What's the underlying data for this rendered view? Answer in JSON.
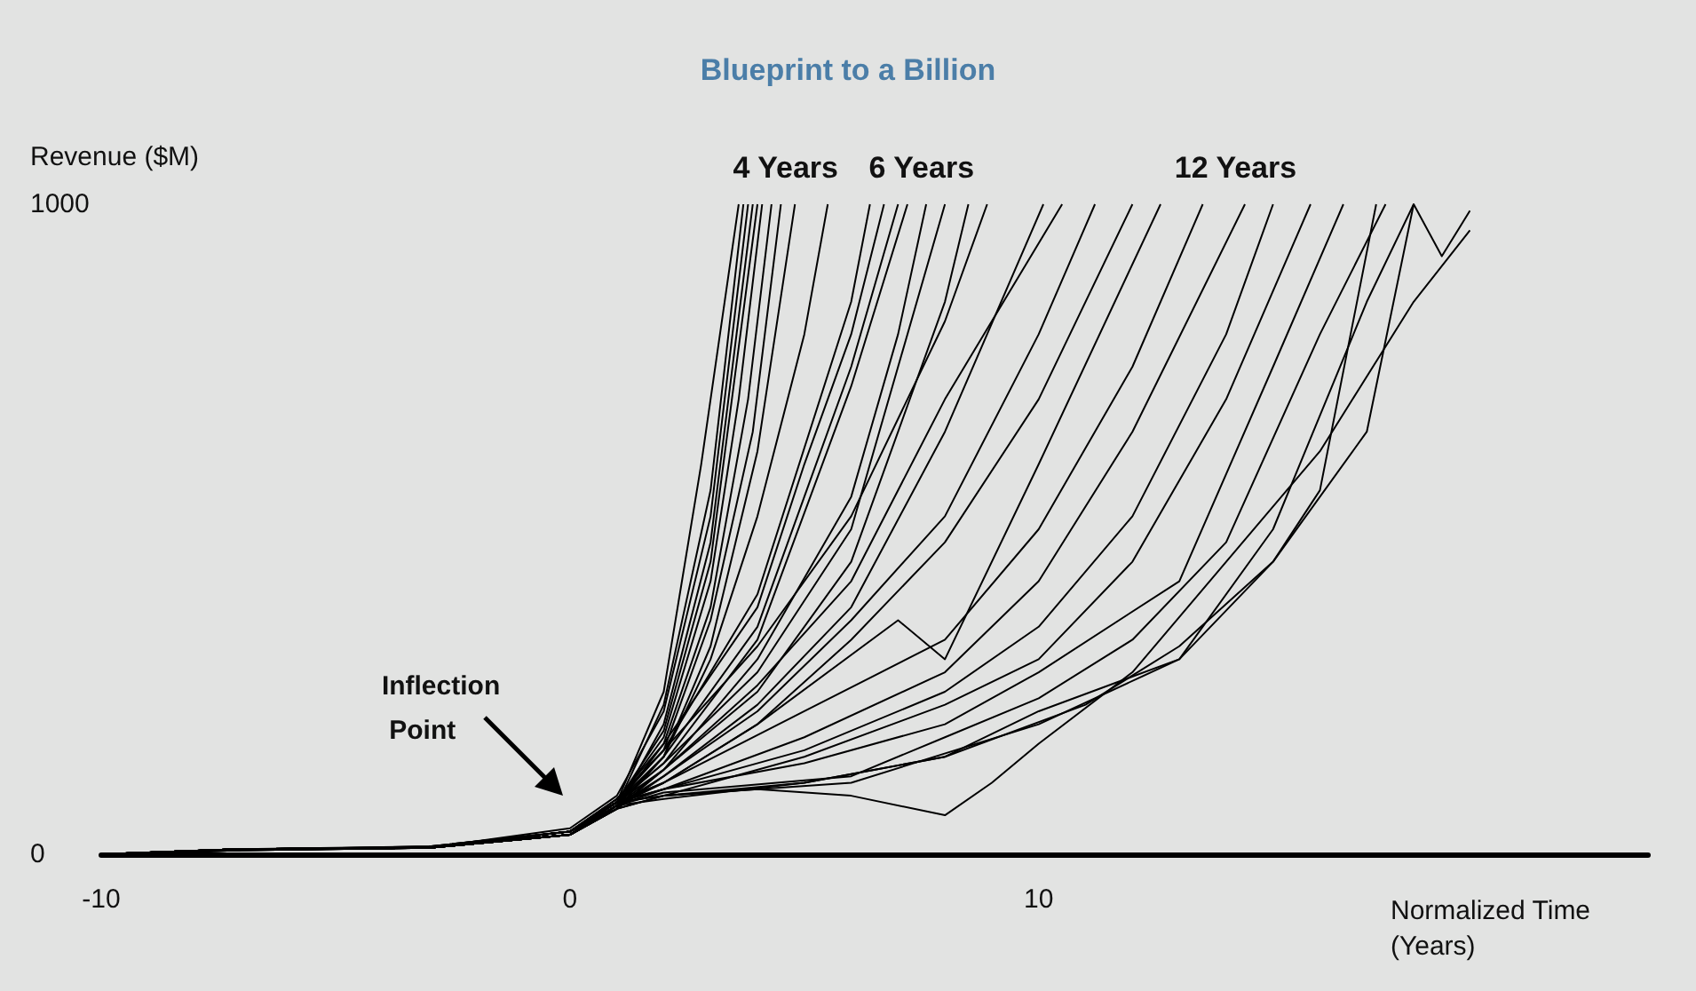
{
  "chart_data": {
    "type": "line",
    "title": "Blueprint to a Billion",
    "xlabel": "Normalized Time (Years)",
    "ylabel": "Revenue ($M)",
    "xlim": [
      -10,
      23
    ],
    "xticks": [
      -10,
      0,
      10
    ],
    "ylim": [
      0,
      1000
    ],
    "yticks": [
      0,
      1000
    ],
    "grid": false,
    "marker": "none",
    "line_style": "solid",
    "color": "#000000",
    "annotations": [
      {
        "text": "4 Years",
        "x": 4.6,
        "y": 1000
      },
      {
        "text": "6 Years",
        "x": 7.5,
        "y": 1000
      },
      {
        "text": "12 Years",
        "x": 14.2,
        "y": 1000
      },
      "Inflection Point"
    ],
    "series": [
      {
        "x": [
          -10,
          -7,
          -3,
          0,
          1,
          2,
          2.8,
          3.6
        ],
        "values": [
          0,
          8,
          10,
          35,
          80,
          250,
          600,
          1000
        ]
      },
      {
        "x": [
          -10,
          -7,
          -3,
          0,
          1,
          2,
          3,
          3.7
        ],
        "values": [
          0,
          8,
          10,
          30,
          75,
          230,
          560,
          1000
        ]
      },
      {
        "x": [
          -10,
          -7,
          -3,
          0,
          1,
          2,
          3,
          3.8
        ],
        "values": [
          0,
          6,
          10,
          40,
          90,
          220,
          520,
          1000
        ]
      },
      {
        "x": [
          -10,
          -7,
          -3,
          0,
          1,
          2,
          3,
          3.9
        ],
        "values": [
          0,
          7,
          12,
          35,
          70,
          200,
          480,
          1000
        ]
      },
      {
        "x": [
          -10,
          -7,
          -3,
          0,
          1,
          2,
          3,
          4
        ],
        "values": [
          0,
          8,
          10,
          30,
          80,
          190,
          450,
          1000
        ]
      },
      {
        "x": [
          -10,
          -7,
          -3,
          0,
          1,
          2,
          3,
          3.6,
          4.1
        ],
        "values": [
          0,
          8,
          10,
          35,
          80,
          180,
          420,
          700,
          1000
        ]
      },
      {
        "x": [
          -10,
          -7,
          -3,
          0,
          1,
          2,
          3,
          3.8,
          4.3
        ],
        "values": [
          0,
          6,
          10,
          30,
          75,
          170,
          380,
          700,
          1000
        ]
      },
      {
        "x": [
          -10,
          -7,
          -3,
          0,
          1,
          2,
          3,
          3.9,
          4.5
        ],
        "values": [
          0,
          7,
          12,
          35,
          85,
          160,
          360,
          650,
          1000
        ]
      },
      {
        "x": [
          -10,
          -7,
          -3,
          0,
          1,
          2,
          3,
          4,
          4.8
        ],
        "values": [
          0,
          8,
          10,
          30,
          70,
          150,
          320,
          620,
          1000
        ]
      },
      {
        "x": [
          -10,
          -7,
          -3,
          0,
          1,
          2,
          3,
          4,
          5,
          5.5
        ],
        "values": [
          0,
          8,
          10,
          35,
          80,
          150,
          300,
          520,
          800,
          1000
        ]
      },
      {
        "x": [
          -10,
          -7,
          -3,
          0,
          1,
          2,
          4,
          6,
          6.4
        ],
        "values": [
          0,
          8,
          10,
          30,
          80,
          160,
          400,
          850,
          1000
        ]
      },
      {
        "x": [
          -10,
          -7,
          -3,
          0,
          1,
          2,
          4,
          5,
          6,
          6.7
        ],
        "values": [
          0,
          6,
          10,
          35,
          85,
          170,
          380,
          600,
          800,
          1000
        ]
      },
      {
        "x": [
          -10,
          -7,
          -3,
          0,
          1,
          2,
          4,
          5,
          6,
          7
        ],
        "values": [
          0,
          8,
          10,
          30,
          75,
          150,
          350,
          550,
          750,
          1000
        ]
      },
      {
        "x": [
          -10,
          -7,
          -3,
          0,
          1,
          2,
          4,
          6,
          7.2
        ],
        "values": [
          0,
          8,
          12,
          35,
          80,
          140,
          330,
          720,
          1000
        ]
      },
      {
        "x": [
          -10,
          -7,
          -3,
          0,
          1,
          2,
          4,
          6,
          7,
          7.6
        ],
        "values": [
          0,
          7,
          10,
          30,
          70,
          130,
          300,
          550,
          800,
          1000
        ]
      },
      {
        "x": [
          -10,
          -7,
          -3,
          0,
          1,
          2,
          4,
          6,
          7,
          8
        ],
        "values": [
          0,
          8,
          10,
          35,
          80,
          140,
          280,
          500,
          750,
          1000
        ]
      },
      {
        "x": [
          -10,
          -7,
          -3,
          0,
          1,
          2,
          4,
          6,
          8,
          8.5
        ],
        "values": [
          0,
          8,
          10,
          30,
          75,
          130,
          250,
          450,
          850,
          1000
        ]
      },
      {
        "x": [
          -10,
          -7,
          -3,
          0,
          1,
          2,
          4,
          6,
          8,
          8.9
        ],
        "values": [
          0,
          6,
          10,
          35,
          85,
          160,
          320,
          520,
          820,
          1000
        ]
      },
      {
        "x": [
          -10,
          -7,
          -3,
          0,
          1,
          2,
          4,
          6,
          8,
          10.1
        ],
        "values": [
          0,
          8,
          10,
          30,
          75,
          120,
          230,
          380,
          650,
          1000
        ]
      },
      {
        "x": [
          -10,
          -7,
          -3,
          0,
          1,
          2,
          4,
          6,
          8,
          10.5
        ],
        "values": [
          0,
          8,
          10,
          35,
          80,
          130,
          260,
          420,
          700,
          1000
        ]
      },
      {
        "x": [
          -10,
          -7,
          -3,
          0,
          1,
          2,
          4,
          6,
          8,
          10,
          11.2
        ],
        "values": [
          0,
          7,
          10,
          30,
          70,
          120,
          220,
          360,
          520,
          800,
          1000
        ]
      },
      {
        "x": [
          -10,
          -7,
          -3,
          0,
          1,
          2,
          4,
          6,
          8,
          10,
          12
        ],
        "values": [
          0,
          8,
          10,
          35,
          80,
          110,
          200,
          330,
          480,
          700,
          1000
        ]
      },
      {
        "x": [
          -10,
          -7,
          -3,
          0,
          1,
          2,
          4,
          7,
          8,
          10,
          12.6
        ],
        "values": [
          0,
          8,
          10,
          30,
          75,
          110,
          200,
          360,
          300,
          600,
          1000
        ]
      },
      {
        "x": [
          -10,
          -7,
          -3,
          0,
          1,
          2,
          5,
          8,
          10,
          12,
          13.5
        ],
        "values": [
          0,
          8,
          10,
          35,
          80,
          110,
          220,
          330,
          500,
          750,
          1000
        ]
      },
      {
        "x": [
          -10,
          -7,
          -3,
          0,
          1,
          2,
          5,
          8,
          10,
          12,
          14.4
        ],
        "values": [
          0,
          7,
          10,
          30,
          75,
          100,
          180,
          280,
          420,
          650,
          1000
        ]
      },
      {
        "x": [
          -10,
          -7,
          -3,
          0,
          1,
          2,
          5,
          8,
          10,
          12,
          14,
          15
        ],
        "values": [
          0,
          8,
          10,
          35,
          80,
          100,
          160,
          250,
          350,
          520,
          800,
          1000
        ]
      },
      {
        "x": [
          -10,
          -7,
          -3,
          0,
          1,
          2,
          5,
          8,
          10,
          12,
          14,
          15.8
        ],
        "values": [
          0,
          8,
          10,
          30,
          70,
          90,
          150,
          230,
          300,
          450,
          700,
          1000
        ]
      },
      {
        "x": [
          -10,
          -7,
          -3,
          0,
          1,
          2,
          5,
          8,
          10,
          13,
          15,
          16.5
        ],
        "values": [
          0,
          8,
          10,
          35,
          80,
          100,
          140,
          200,
          280,
          420,
          750,
          1000
        ]
      },
      {
        "x": [
          -10,
          -7,
          -3,
          0,
          1,
          2,
          6,
          8,
          10,
          12,
          14,
          16,
          17.4
        ],
        "values": [
          0,
          8,
          10,
          30,
          75,
          95,
          120,
          180,
          240,
          330,
          480,
          800,
          1000
        ]
      },
      {
        "x": [
          -10,
          -7,
          -3,
          0,
          1,
          2,
          5,
          8,
          10,
          13,
          15,
          17,
          18
        ],
        "values": [
          0,
          8,
          10,
          35,
          80,
          90,
          110,
          150,
          220,
          300,
          500,
          850,
          1000
        ]
      },
      {
        "x": [
          -10,
          -7,
          -3,
          0,
          1,
          2,
          4,
          6,
          8,
          9,
          10,
          12,
          14,
          16,
          18,
          19.2
        ],
        "values": [
          0,
          8,
          10,
          30,
          70,
          90,
          100,
          90,
          60,
          110,
          170,
          280,
          450,
          620,
          850,
          960
        ]
      },
      {
        "x": [
          -10,
          -7,
          -3,
          0,
          1,
          2,
          6,
          10,
          13,
          15,
          17,
          18,
          18.6,
          19.2
        ],
        "values": [
          0,
          8,
          10,
          35,
          80,
          90,
          110,
          200,
          300,
          450,
          650,
          1000,
          920,
          990
        ]
      },
      {
        "x": [
          -10,
          -7,
          -3,
          0,
          1,
          2,
          5,
          8,
          11,
          13,
          15,
          16,
          17.2
        ],
        "values": [
          0,
          8,
          10,
          30,
          75,
          85,
          110,
          150,
          230,
          320,
          450,
          560,
          1000
        ]
      }
    ]
  }
}
